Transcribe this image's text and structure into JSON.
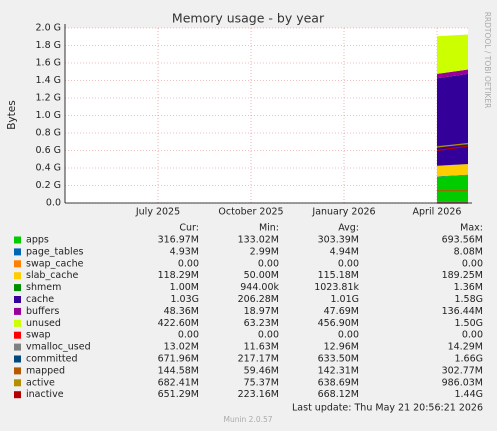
{
  "chart_data": {
    "type": "area",
    "title": "Memory usage - by year",
    "y_label": "Bytes",
    "side_text": "RRDTOOL / TOBI OETIKER",
    "x": [
      "2026-04",
      "2026-05"
    ],
    "xlim": [
      "2025-04",
      "2026-05"
    ],
    "xticks": [
      {
        "value": "2025-07",
        "label": "July 2025"
      },
      {
        "value": "2025-10",
        "label": "October 2025"
      },
      {
        "value": "2026-01",
        "label": "January 2026"
      },
      {
        "value": "2026-04",
        "label": "April 2026"
      }
    ],
    "ylim": [
      0,
      2.0
    ],
    "yticks": [
      {
        "value": 0,
        "label": "0.0"
      },
      {
        "value": 0.2,
        "label": "0.2 G"
      },
      {
        "value": 0.4,
        "label": "0.4 G"
      },
      {
        "value": 0.6,
        "label": "0.6 G"
      },
      {
        "value": 0.8,
        "label": "0.8 G"
      },
      {
        "value": 1.0,
        "label": "1.0 G"
      },
      {
        "value": 1.2,
        "label": "1.2 G"
      },
      {
        "value": 1.4,
        "label": "1.4 G"
      },
      {
        "value": 1.6,
        "label": "1.6 G"
      },
      {
        "value": 1.8,
        "label": "1.8 G"
      },
      {
        "value": 2.0,
        "label": "2.0 G"
      }
    ],
    "grid": true,
    "columns": [
      "Cur:",
      "Min:",
      "Avg:",
      "Max:"
    ],
    "series": [
      {
        "name": "apps",
        "color": "#00cc00",
        "draw": "stack",
        "values": [
          0.3,
          0.32
        ],
        "stats": [
          "316.97M",
          "133.02M",
          "303.39M",
          "693.56M"
        ]
      },
      {
        "name": "page_tables",
        "color": "#0066b3",
        "draw": "stack",
        "values": [
          0.005,
          0.005
        ],
        "stats": [
          "4.93M",
          "2.99M",
          "4.94M",
          "8.08M"
        ]
      },
      {
        "name": "swap_cache",
        "color": "#ff8000",
        "draw": "stack",
        "values": [
          0,
          0
        ],
        "stats": [
          "0.00",
          "0.00",
          "0.00",
          "0.00"
        ]
      },
      {
        "name": "slab_cache",
        "color": "#ffcc00",
        "draw": "stack",
        "values": [
          0.12,
          0.12
        ],
        "stats": [
          "118.29M",
          "50.00M",
          "115.18M",
          "189.25M"
        ]
      },
      {
        "name": "shmem",
        "color": "#008f00",
        "draw": "stack",
        "values": [
          0.001,
          0.001
        ],
        "stats": [
          "1.00M",
          "944.00k",
          "1023.81k",
          "1.36M"
        ]
      },
      {
        "name": "cache",
        "color": "#330099",
        "draw": "stack",
        "values": [
          1.0,
          1.03
        ],
        "stats": [
          "1.03G",
          "206.28M",
          "1.01G",
          "1.58G"
        ]
      },
      {
        "name": "buffers",
        "color": "#990099",
        "draw": "stack",
        "values": [
          0.05,
          0.05
        ],
        "stats": [
          "48.36M",
          "18.97M",
          "47.69M",
          "136.44M"
        ]
      },
      {
        "name": "unused",
        "color": "#ccff00",
        "draw": "stack",
        "values": [
          0.43,
          0.4
        ],
        "stats": [
          "422.60M",
          "63.23M",
          "456.90M",
          "1.50G"
        ]
      },
      {
        "name": "swap",
        "color": "#ff0000",
        "draw": "line",
        "values": [
          0,
          0
        ],
        "stats": [
          "0.00",
          "0.00",
          "0.00",
          "0.00"
        ]
      },
      {
        "name": "vmalloc_used",
        "color": "#808080",
        "draw": "line",
        "values": [
          0.013,
          0.013
        ],
        "stats": [
          "13.02M",
          "11.63M",
          "12.96M",
          "14.29M"
        ]
      },
      {
        "name": "committed",
        "color": "#00487d",
        "draw": "line",
        "values": [
          0.65,
          0.67
        ],
        "stats": [
          "671.96M",
          "217.17M",
          "633.50M",
          "1.66G"
        ]
      },
      {
        "name": "mapped",
        "color": "#b35a00",
        "draw": "line",
        "values": [
          0.14,
          0.14
        ],
        "stats": [
          "144.58M",
          "59.46M",
          "142.31M",
          "302.77M"
        ]
      },
      {
        "name": "active",
        "color": "#b38f00",
        "draw": "line",
        "values": [
          0.64,
          0.68
        ],
        "stats": [
          "682.41M",
          "75.37M",
          "638.69M",
          "986.03M"
        ]
      },
      {
        "name": "inactive",
        "color": "#b30000",
        "draw": "line",
        "values": [
          0.6,
          0.65
        ],
        "stats": [
          "651.29M",
          "223.16M",
          "668.12M",
          "1.44G"
        ]
      }
    ],
    "last_update": "Last update: Thu May 21 20:56:21 2026",
    "footer": "Munin 2.0.57"
  }
}
